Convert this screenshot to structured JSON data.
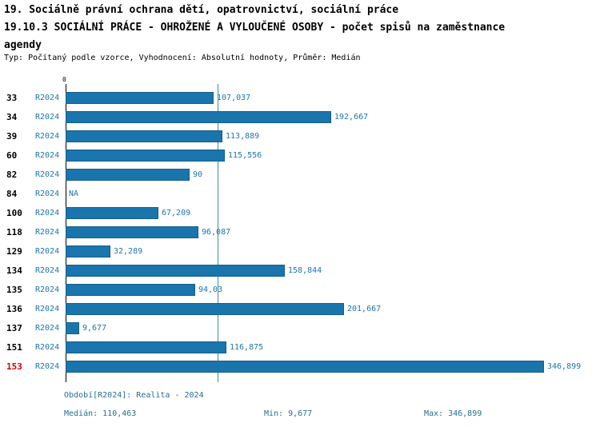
{
  "header": {
    "title_line1": "19. Sociálně právní ochrana dětí, opatrovnictví, sociální práce",
    "title_line2": "19.10.3 SOCIÁLNÍ PRÁCE - OHROŽENÉ A VYLOUČENÉ OSOBY - počet spisů na zaměstnance",
    "title_line3": "agendy",
    "meta": "Typ: Počítaný podle vzorce, Vyhodnocení: Absolutní hodnoty, Průměr: Medián"
  },
  "chart_data": {
    "type": "bar",
    "orientation": "horizontal",
    "title": "19.10.3 SOCIÁLNÍ PRÁCE - OHROŽENÉ A VYLOUČENÉ OSOBY - počet spisů na zaměstnance agendy",
    "axis": {
      "zero_label": "0",
      "xlim": [
        0,
        360
      ]
    },
    "bar_color": "#1b75ad",
    "median_value": 110.463,
    "grid": false,
    "legend": "none",
    "rows": [
      {
        "id": "33",
        "period": "R2024",
        "value": 107.037,
        "label": "107,037"
      },
      {
        "id": "34",
        "period": "R2024",
        "value": 192.667,
        "label": "192,667"
      },
      {
        "id": "39",
        "period": "R2024",
        "value": 113.889,
        "label": "113,889"
      },
      {
        "id": "60",
        "period": "R2024",
        "value": 115.556,
        "label": "115,556"
      },
      {
        "id": "82",
        "period": "R2024",
        "value": 90,
        "label": "90"
      },
      {
        "id": "84",
        "period": "R2024",
        "value": null,
        "label": "NA"
      },
      {
        "id": "100",
        "period": "R2024",
        "value": 67.209,
        "label": "67,209"
      },
      {
        "id": "118",
        "period": "R2024",
        "value": 96.087,
        "label": "96,087"
      },
      {
        "id": "129",
        "period": "R2024",
        "value": 32.289,
        "label": "32,289"
      },
      {
        "id": "134",
        "period": "R2024",
        "value": 158.844,
        "label": "158,844"
      },
      {
        "id": "135",
        "period": "R2024",
        "value": 94.03,
        "label": "94,03"
      },
      {
        "id": "136",
        "period": "R2024",
        "value": 201.667,
        "label": "201,667"
      },
      {
        "id": "137",
        "period": "R2024",
        "value": 9.677,
        "label": "9,677"
      },
      {
        "id": "151",
        "period": "R2024",
        "value": 116.875,
        "label": "116,875"
      },
      {
        "id": "153",
        "period": "R2024",
        "value": 346.899,
        "label": "346,899",
        "highlight": true
      }
    ]
  },
  "footer": {
    "period_label": "Období[R2024]: Realita - 2024",
    "median": "Medián: 110,463",
    "min": "Min: 9,677",
    "max": "Max: 346,899"
  }
}
